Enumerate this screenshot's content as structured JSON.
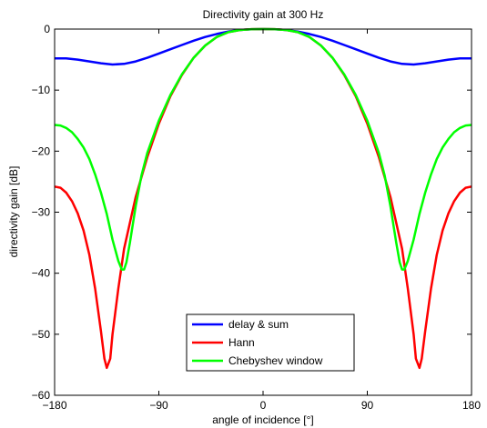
{
  "chart_data": {
    "type": "line",
    "title": "Directivity gain at 300 Hz",
    "xlabel": "angle of incidence [°]",
    "ylabel": "directivity gain [dB]",
    "xlim": [
      -180,
      180
    ],
    "ylim": [
      -60,
      0
    ],
    "xticks": [
      -180,
      -90,
      0,
      90,
      180
    ],
    "yticks": [
      0,
      -10,
      -20,
      -30,
      -40,
      -50,
      -60
    ],
    "xtick_labels": [
      "−180",
      "−90",
      "0",
      "90",
      "180"
    ],
    "ytick_labels": [
      "0",
      "−10",
      "−20",
      "−30",
      "−40",
      "−50",
      "−60"
    ],
    "grid": false,
    "legend_position": "bottom-center",
    "series": [
      {
        "name": "delay & sum",
        "color": "#0000ff",
        "x": [
          -180,
          -170,
          -160,
          -150,
          -140,
          -130,
          -120,
          -110,
          -100,
          -90,
          -80,
          -70,
          -60,
          -50,
          -40,
          -30,
          -20,
          -10,
          0,
          10,
          20,
          30,
          40,
          50,
          60,
          70,
          80,
          90,
          100,
          110,
          120,
          130,
          140,
          150,
          160,
          170,
          180
        ],
        "y": [
          -4.8,
          -4.8,
          -5.0,
          -5.3,
          -5.6,
          -5.8,
          -5.7,
          -5.3,
          -4.7,
          -4.0,
          -3.3,
          -2.6,
          -1.9,
          -1.3,
          -0.8,
          -0.4,
          -0.15,
          -0.03,
          0,
          -0.03,
          -0.15,
          -0.4,
          -0.8,
          -1.3,
          -1.9,
          -2.6,
          -3.3,
          -4.0,
          -4.7,
          -5.3,
          -5.7,
          -5.8,
          -5.6,
          -5.3,
          -5.0,
          -4.8,
          -4.8
        ]
      },
      {
        "name": "Hann",
        "color": "#ff0000",
        "x": [
          -180,
          -175,
          -170,
          -165,
          -160,
          -155,
          -150,
          -145,
          -140,
          -137,
          -135,
          -132,
          -130,
          -125,
          -120,
          -110,
          -100,
          -90,
          -80,
          -70,
          -60,
          -50,
          -40,
          -30,
          -20,
          -10,
          0,
          10,
          20,
          30,
          40,
          50,
          60,
          70,
          80,
          90,
          100,
          110,
          120,
          125,
          130,
          132,
          135,
          137,
          140,
          145,
          150,
          155,
          160,
          165,
          170,
          175,
          180
        ],
        "y": [
          -25.8,
          -26.0,
          -26.8,
          -28.2,
          -30.2,
          -33.0,
          -37.0,
          -42.5,
          -49.5,
          -54.0,
          -55.5,
          -54.0,
          -50.0,
          -42.5,
          -36.0,
          -27.5,
          -21.0,
          -15.5,
          -11.0,
          -7.5,
          -4.7,
          -2.7,
          -1.3,
          -0.5,
          -0.15,
          -0.02,
          0,
          -0.02,
          -0.15,
          -0.5,
          -1.3,
          -2.7,
          -4.7,
          -7.5,
          -11.0,
          -15.5,
          -21.0,
          -27.5,
          -36.0,
          -42.5,
          -50.0,
          -54.0,
          -55.5,
          -54.0,
          -49.5,
          -42.5,
          -37.0,
          -33.0,
          -30.2,
          -28.2,
          -26.8,
          -26.0,
          -25.8
        ]
      },
      {
        "name": "Chebyshev window",
        "color": "#00ff00",
        "x": [
          -180,
          -175,
          -170,
          -165,
          -160,
          -155,
          -150,
          -145,
          -140,
          -135,
          -130,
          -125,
          -122,
          -120,
          -118,
          -115,
          -110,
          -105,
          -100,
          -90,
          -80,
          -70,
          -60,
          -50,
          -40,
          -30,
          -20,
          -10,
          0,
          10,
          20,
          30,
          40,
          50,
          60,
          70,
          80,
          90,
          100,
          105,
          110,
          115,
          118,
          120,
          122,
          125,
          130,
          135,
          140,
          145,
          150,
          155,
          160,
          165,
          170,
          175,
          180
        ],
        "y": [
          -15.7,
          -15.8,
          -16.2,
          -16.9,
          -18.0,
          -19.4,
          -21.3,
          -23.8,
          -26.8,
          -30.3,
          -34.5,
          -38.0,
          -39.4,
          -39.4,
          -38.2,
          -35.0,
          -29.0,
          -24.0,
          -20.3,
          -15.0,
          -10.8,
          -7.4,
          -4.7,
          -2.7,
          -1.3,
          -0.5,
          -0.15,
          -0.02,
          0,
          -0.02,
          -0.15,
          -0.5,
          -1.3,
          -2.7,
          -4.7,
          -7.4,
          -10.8,
          -15.0,
          -20.3,
          -24.0,
          -29.0,
          -35.0,
          -38.2,
          -39.4,
          -39.4,
          -38.0,
          -34.5,
          -30.3,
          -26.8,
          -23.8,
          -21.3,
          -19.4,
          -18.0,
          -16.9,
          -16.2,
          -15.8,
          -15.7
        ]
      }
    ]
  }
}
